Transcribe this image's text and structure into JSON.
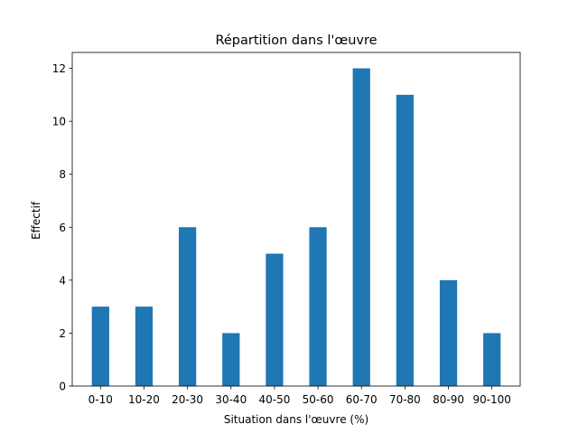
{
  "chart_data": {
    "type": "bar",
    "title": "Répartition dans l'œuvre",
    "xlabel": "Situation dans l'œuvre (%)",
    "ylabel": "Effectif",
    "categories": [
      "0-10",
      "10-20",
      "20-30",
      "30-40",
      "40-50",
      "50-60",
      "60-70",
      "70-80",
      "80-90",
      "90-100"
    ],
    "values": [
      3,
      3,
      6,
      2,
      5,
      6,
      12,
      11,
      4,
      2
    ],
    "ylim": [
      0,
      12.6
    ],
    "yticks": [
      0,
      2,
      4,
      6,
      8,
      10,
      12
    ],
    "grid": false,
    "bar_color": "#1f77b4"
  }
}
